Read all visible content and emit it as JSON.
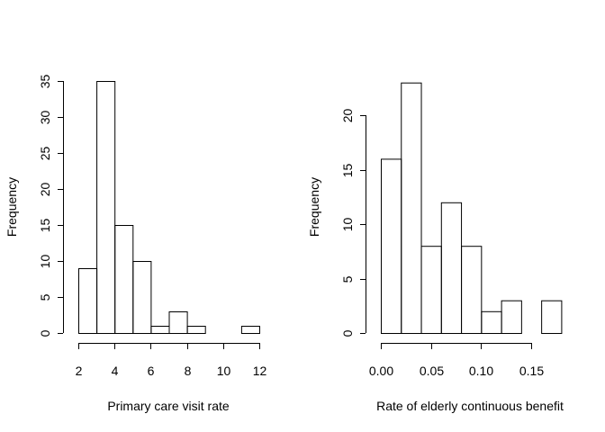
{
  "chart_data": [
    {
      "type": "bar",
      "title": "",
      "xlabel": "Primary care visit rate",
      "ylabel": "Frequency",
      "bins": [
        [
          2,
          3
        ],
        [
          3,
          4
        ],
        [
          4,
          5
        ],
        [
          5,
          6
        ],
        [
          6,
          7
        ],
        [
          7,
          8
        ],
        [
          8,
          9
        ],
        [
          9,
          10
        ],
        [
          10,
          11
        ],
        [
          11,
          12
        ]
      ],
      "values": [
        9,
        35,
        15,
        10,
        1,
        3,
        1,
        0,
        0,
        1
      ],
      "xlim": [
        2,
        12
      ],
      "ylim": [
        0,
        35
      ],
      "xticks": [
        2,
        4,
        6,
        8,
        10,
        12
      ],
      "xtick_labels": [
        "2",
        "4",
        "6",
        "8",
        "10",
        "12"
      ],
      "yticks": [
        0,
        5,
        10,
        15,
        20,
        25,
        30,
        35
      ],
      "ytick_labels": [
        "0",
        "5",
        "10",
        "15",
        "20",
        "25",
        "30",
        "35"
      ],
      "grid": false
    },
    {
      "type": "bar",
      "title": "",
      "xlabel": "Rate of elderly continuous benefit",
      "ylabel": "Frequency",
      "bins": [
        [
          0,
          0.02
        ],
        [
          0.02,
          0.04
        ],
        [
          0.04,
          0.06
        ],
        [
          0.06,
          0.08
        ],
        [
          0.08,
          0.1
        ],
        [
          0.1,
          0.12
        ],
        [
          0.12,
          0.14
        ],
        [
          0.14,
          0.16
        ],
        [
          0.16,
          0.18
        ]
      ],
      "values": [
        16,
        23,
        8,
        12,
        8,
        2,
        3,
        0,
        3
      ],
      "xlim": [
        0,
        0.15
      ],
      "ylim": [
        0,
        20
      ],
      "xticks": [
        0,
        0.05,
        0.1,
        0.15
      ],
      "xtick_labels": [
        "0.00",
        "0.05",
        "0.10",
        "0.15"
      ],
      "yticks": [
        0,
        5,
        10,
        15,
        20
      ],
      "ytick_labels": [
        "0",
        "5",
        "10",
        "15",
        "20"
      ],
      "grid": false
    }
  ]
}
